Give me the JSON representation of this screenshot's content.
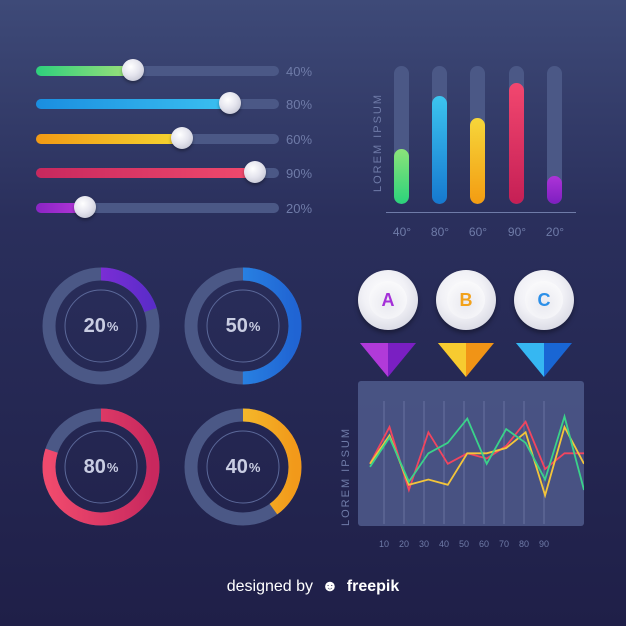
{
  "sliders": [
    {
      "label": "40%",
      "value": 0.4,
      "from": "#2ed07c",
      "to": "#9fe07a"
    },
    {
      "label": "80%",
      "value": 0.8,
      "from": "#1a8ee0",
      "to": "#3bc0f0"
    },
    {
      "label": "60%",
      "value": 0.6,
      "from": "#f29a14",
      "to": "#f4d531"
    },
    {
      "label": "90%",
      "value": 0.9,
      "from": "#c8285e",
      "to": "#f04a6d"
    },
    {
      "label": "20%",
      "value": 0.2,
      "from": "#8a24c4",
      "to": "#b537d8"
    }
  ],
  "bar_chart": {
    "axis_label": "LOREM IPSUM",
    "bars": [
      {
        "label": "40°",
        "value": 0.4,
        "from": "#2bd27b",
        "to": "#8be37a"
      },
      {
        "label": "80°",
        "value": 0.78,
        "from": "#1678cf",
        "to": "#3cc4ef"
      },
      {
        "label": "60°",
        "value": 0.62,
        "from": "#f39c12",
        "to": "#f6d63a"
      },
      {
        "label": "90°",
        "value": 0.88,
        "from": "#c51f55",
        "to": "#f2476f"
      },
      {
        "label": "20°",
        "value": 0.2,
        "from": "#7d1fc0",
        "to": "#ad33d8"
      }
    ]
  },
  "donuts": [
    {
      "value": "20",
      "unit": "%",
      "fraction": 0.2,
      "from": "#9b2fe0",
      "to": "#5a2cc9"
    },
    {
      "value": "50",
      "unit": "%",
      "fraction": 0.5,
      "from": "#2f9cf0",
      "to": "#2064d3"
    },
    {
      "value": "80",
      "unit": "%",
      "fraction": 0.8,
      "from": "#f04a6d",
      "to": "#c8285e"
    },
    {
      "value": "40",
      "unit": "%",
      "fraction": 0.4,
      "from": "#f6d63a",
      "to": "#f2991a"
    }
  ],
  "options": [
    {
      "letter": "A",
      "color": "#a42fd8",
      "from": "#b13ad9",
      "to": "#7a1fc2"
    },
    {
      "letter": "B",
      "color": "#f2a21c",
      "from": "#f7cb30",
      "to": "#f19416"
    },
    {
      "letter": "C",
      "color": "#2b8fe8",
      "from": "#36b7f2",
      "to": "#1966d4"
    }
  ],
  "line_chart": {
    "axis_label": "LOREM IPSUM",
    "x_ticks": [
      "10",
      "20",
      "30",
      "40",
      "50",
      "60",
      "70",
      "80",
      "90"
    ],
    "series": [
      {
        "color": "#f2455f",
        "values": [
          0.45,
          0.8,
          0.2,
          0.75,
          0.45,
          0.55,
          0.5,
          0.62,
          0.85,
          0.4,
          0.55,
          0.55
        ]
      },
      {
        "color": "#f3c53a",
        "values": [
          0.45,
          0.72,
          0.25,
          0.3,
          0.25,
          0.55,
          0.55,
          0.6,
          0.75,
          0.15,
          0.8,
          0.45
        ]
      },
      {
        "color": "#3ad28a",
        "values": [
          0.42,
          0.7,
          0.28,
          0.55,
          0.65,
          0.88,
          0.45,
          0.78,
          0.65,
          0.3,
          0.9,
          0.2
        ]
      }
    ]
  },
  "footer": {
    "prefix": "designed by",
    "brand": "freepik"
  }
}
